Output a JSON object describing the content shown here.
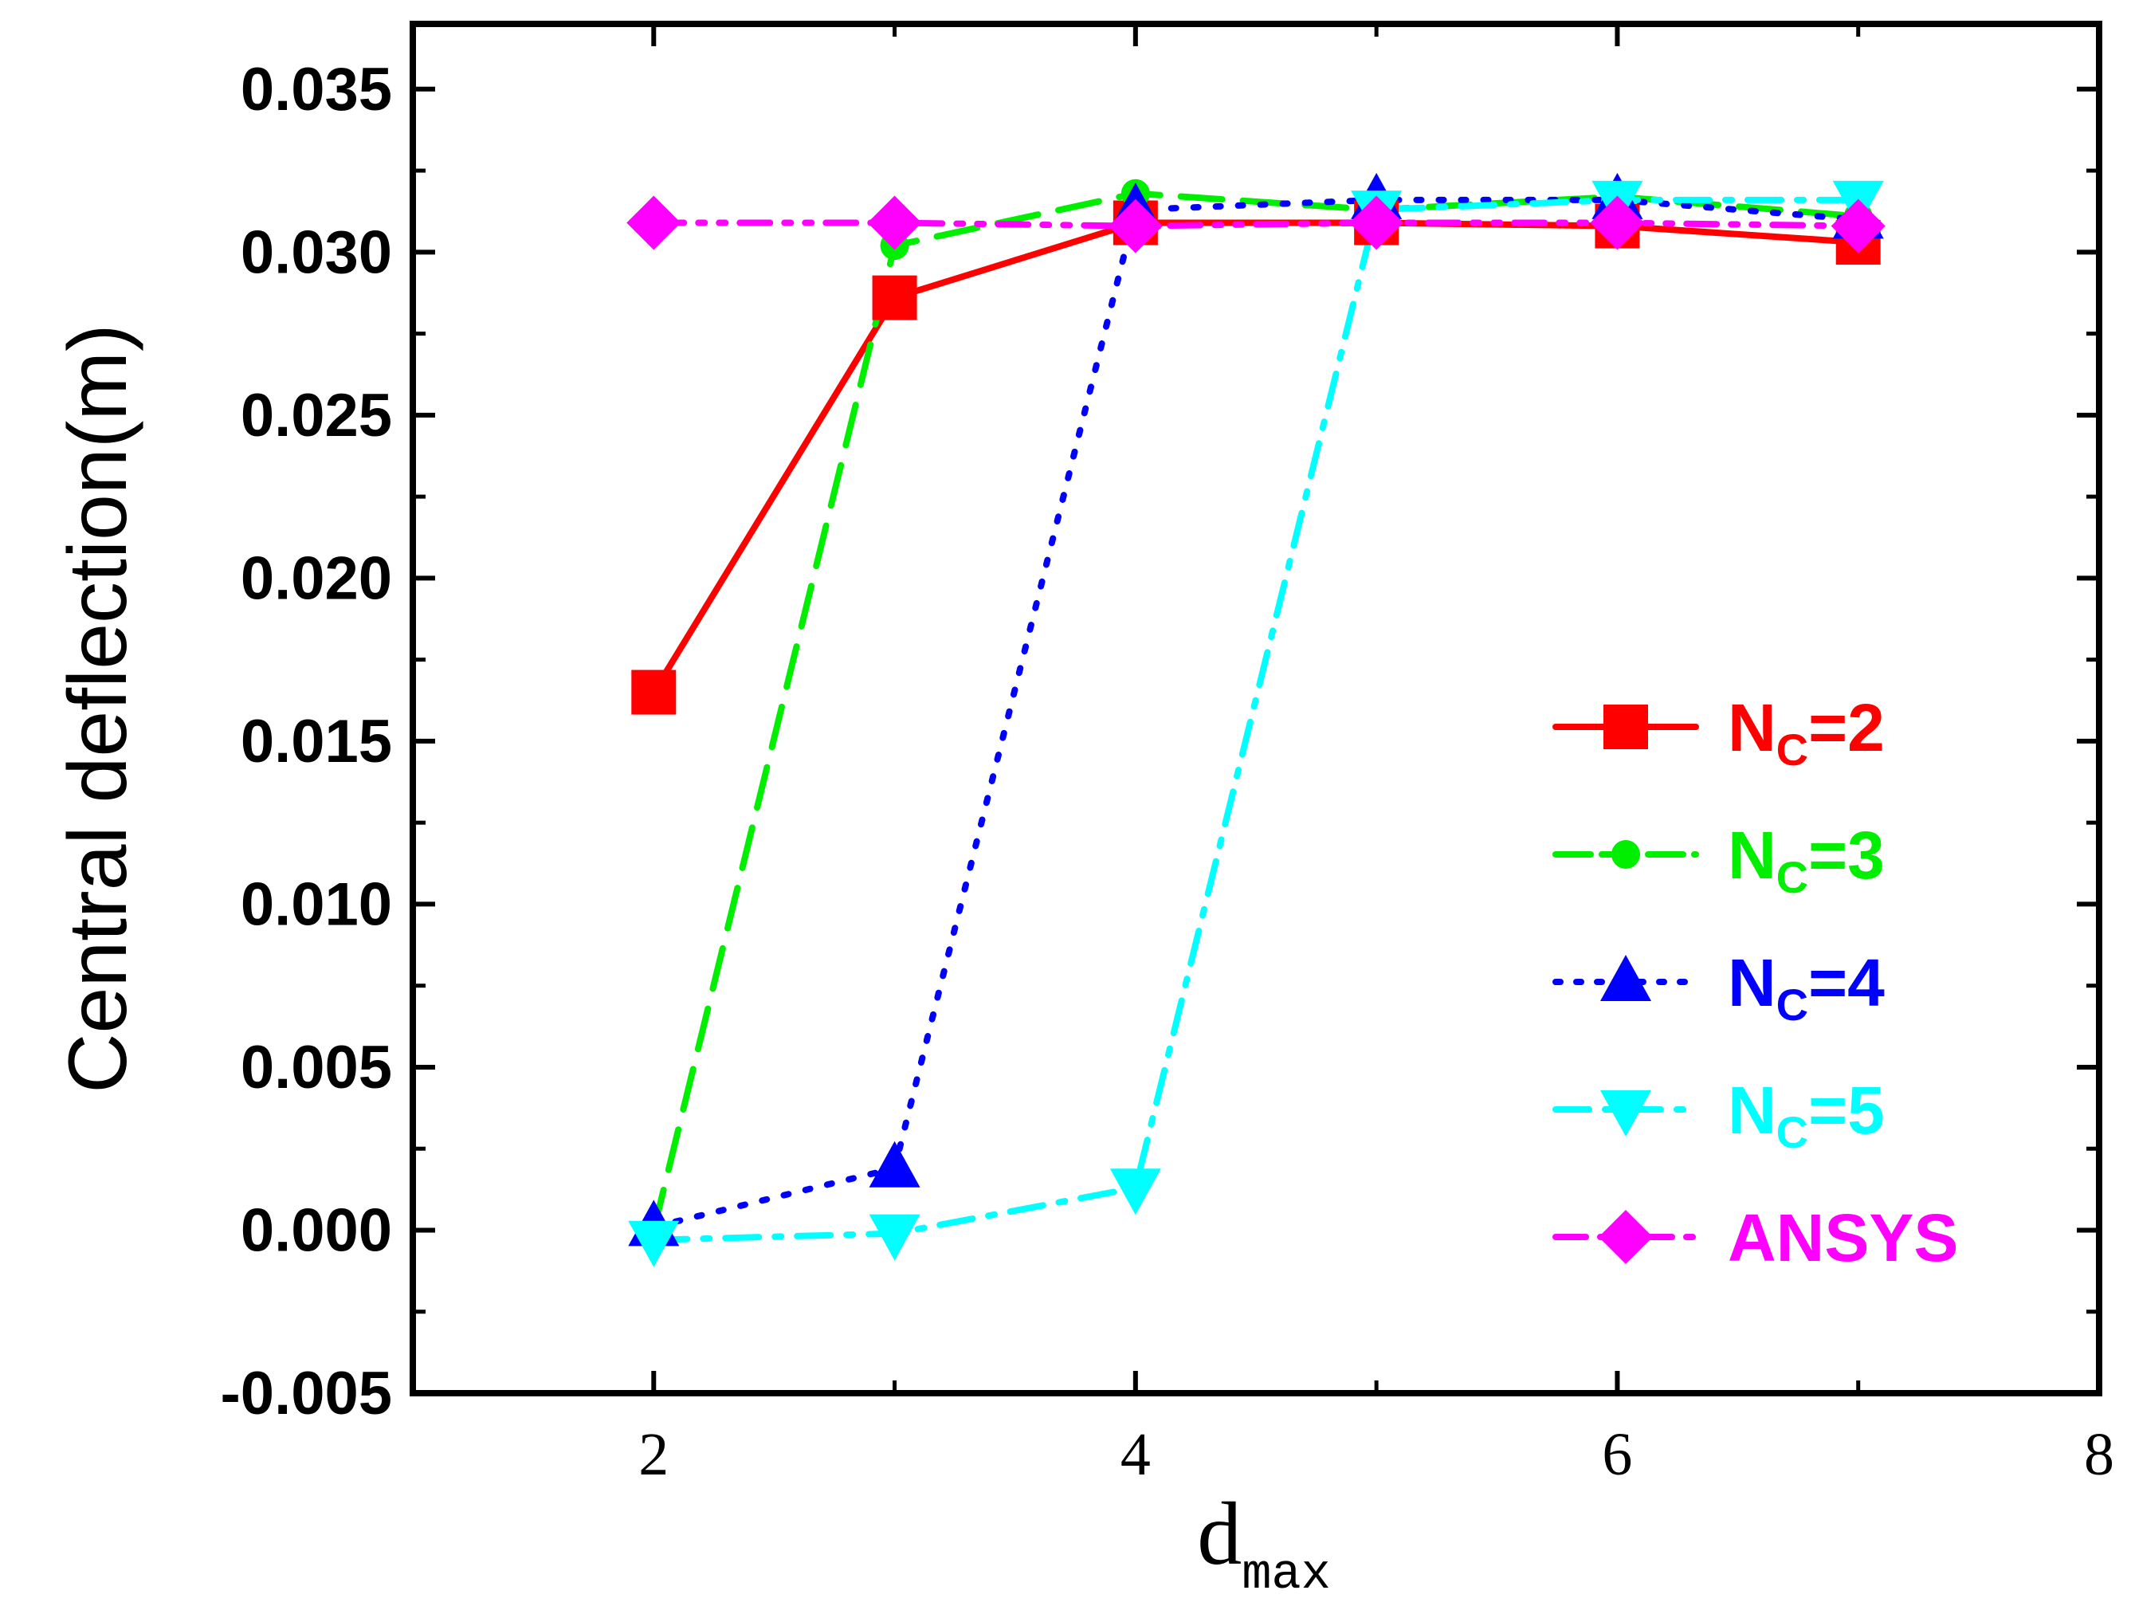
{
  "chart_data": {
    "type": "line",
    "title": "",
    "xlabel": "d",
    "xlabel_subscript": "max",
    "ylabel": "Central deflection(m)",
    "xlim": [
      1,
      8
    ],
    "ylim": [
      -0.005,
      0.037
    ],
    "x_ticks": [
      2,
      4,
      6,
      8
    ],
    "x_tick_labels": [
      "2",
      "4",
      "6",
      "8"
    ],
    "y_ticks": [
      -0.005,
      0.0,
      0.005,
      0.01,
      0.015,
      0.02,
      0.025,
      0.03,
      0.035
    ],
    "y_tick_labels": [
      "-0.005",
      "0.000",
      "0.005",
      "0.010",
      "0.015",
      "0.020",
      "0.025",
      "0.030",
      "0.035"
    ],
    "grid": false,
    "legend_position": "center-right",
    "series": [
      {
        "name": "N_C=2",
        "label_main": "N",
        "label_sub": "C",
        "label_tail": "=2",
        "color": "#ff0000",
        "marker": "square",
        "line_style": "solid",
        "x": [
          2,
          3,
          4,
          5,
          6,
          7
        ],
        "values": [
          0.0165,
          0.0286,
          0.0309,
          0.0309,
          0.0308,
          0.0303
        ]
      },
      {
        "name": "N_C=3",
        "label_main": "N",
        "label_sub": "C",
        "label_tail": "=3",
        "color": "#00ee00",
        "marker": "circle",
        "line_style": "dash",
        "x": [
          2,
          3,
          4,
          5,
          6,
          7
        ],
        "values": [
          0.0,
          0.0302,
          0.0318,
          0.0313,
          0.0317,
          0.0311
        ]
      },
      {
        "name": "N_C=4",
        "label_main": "N",
        "label_sub": "C",
        "label_tail": "=4",
        "color": "#0000ff",
        "marker": "triangle-up",
        "line_style": "dot",
        "x": [
          2,
          3,
          4,
          5,
          6,
          7
        ],
        "values": [
          0.0001,
          0.0019,
          0.0313,
          0.0316,
          0.0316,
          0.031
        ]
      },
      {
        "name": "N_C=5",
        "label_main": "N",
        "label_sub": "C",
        "label_tail": "=5",
        "color": "#00ffff",
        "marker": "triangle-down",
        "line_style": "dashdot",
        "x": [
          2,
          3,
          4,
          5,
          6,
          7
        ],
        "values": [
          -0.0003,
          -0.0001,
          0.0013,
          0.0313,
          0.0316,
          0.0316
        ]
      },
      {
        "name": "ANSYS",
        "label_main": "ANSYS",
        "label_sub": "",
        "label_tail": "",
        "color": "#ff00ff",
        "marker": "diamond",
        "line_style": "dashdotdot",
        "x": [
          2,
          3,
          4,
          5,
          6,
          7
        ],
        "values": [
          0.0309,
          0.0309,
          0.0308,
          0.0309,
          0.0309,
          0.0308
        ]
      }
    ]
  }
}
